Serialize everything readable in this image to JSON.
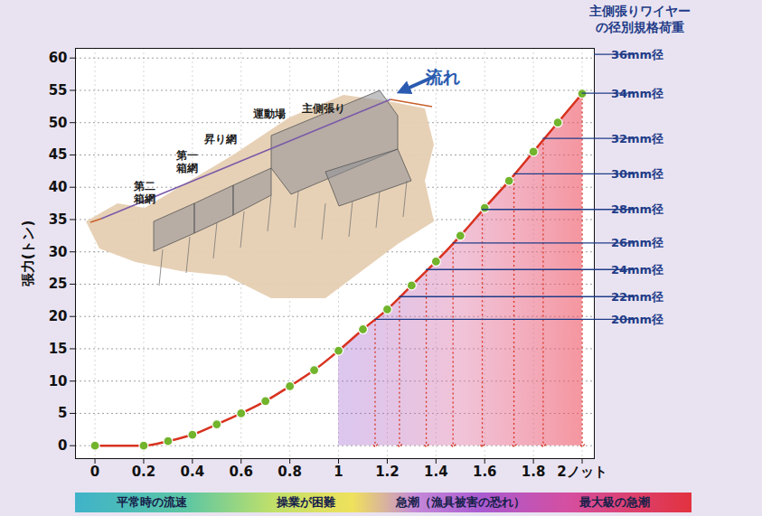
{
  "chart_data": {
    "type": "line",
    "y_label": "張力(トン)",
    "x": [
      0,
      0.2,
      0.3,
      0.4,
      0.5,
      0.6,
      0.7,
      0.8,
      0.9,
      1.0,
      1.1,
      1.2,
      1.3,
      1.4,
      1.5,
      1.6,
      1.7,
      1.8,
      1.9,
      2.0
    ],
    "values": [
      0,
      0,
      0.7,
      1.7,
      3.3,
      5.0,
      6.9,
      9.2,
      11.7,
      14.7,
      18.0,
      21.1,
      24.8,
      28.5,
      32.5,
      36.8,
      41.0,
      45.5,
      50.0,
      54.5
    ],
    "color": "#d8321f",
    "marker": "circle",
    "xlim": [
      -0.08,
      2.05
    ],
    "xticks": [
      0,
      0.2,
      0.4,
      0.6,
      0.8,
      1,
      1.2,
      1.4,
      1.6,
      1.8,
      {
        "value": 2,
        "label": "2ノット"
      }
    ],
    "ylim": [
      -2,
      61.5
    ],
    "yticks": [
      0,
      5,
      10,
      15,
      20,
      25,
      30,
      35,
      40,
      45,
      50,
      55,
      60
    ],
    "grid": true,
    "danger_zone_start": 1.0,
    "wire_ratings": {
      "title": [
        "主側張りワイヤー",
        "の径別規格荷重"
      ],
      "items": [
        {
          "label": "20mm径",
          "tension": 19.5,
          "speed": 1.15
        },
        {
          "label": "22mm径",
          "tension": 23.0,
          "speed": 1.25
        },
        {
          "label": "24mm径",
          "tension": 27.2,
          "speed": 1.36
        },
        {
          "label": "26mm径",
          "tension": 31.3,
          "speed": 1.47
        },
        {
          "label": "28mm径",
          "tension": 36.5,
          "speed": 1.59
        },
        {
          "label": "30mm径",
          "tension": 42.0,
          "speed": 1.72
        },
        {
          "label": "32mm径",
          "tension": 47.5,
          "speed": 1.84
        },
        {
          "label": "34mm径",
          "tension": 54.5,
          "speed": 2.0
        },
        {
          "label": "36mm径",
          "tension": 60.5,
          "speed": null
        }
      ]
    },
    "speed_zones": [
      "平常時の流速",
      "操業が困難",
      "急潮（漁具被害の恐れ）",
      "最大級の急潮"
    ],
    "illustration": {
      "flow": "流れ",
      "labels": [
        [
          "主側張り"
        ],
        [
          "運動場"
        ],
        [
          "昇り網"
        ],
        [
          "第一",
          "箱網"
        ],
        [
          "第二",
          "箱網"
        ]
      ]
    }
  }
}
